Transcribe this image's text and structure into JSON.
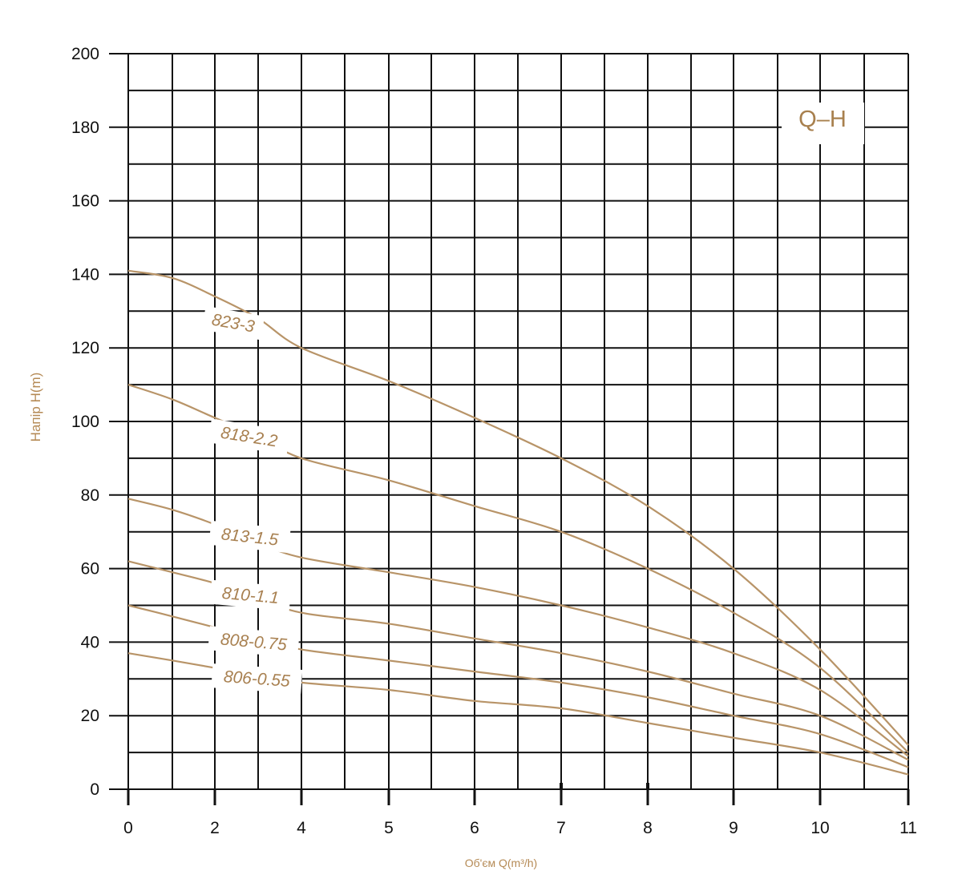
{
  "chart_data": {
    "type": "line",
    "title": "Q–H",
    "xlabel": "Об'єм Q(m³/h)",
    "ylabel": "Напір H(m)",
    "x_ticks": [
      0,
      2,
      4,
      5,
      6,
      7,
      8,
      9,
      10,
      11
    ],
    "y_ticks": [
      0,
      20,
      40,
      60,
      80,
      100,
      120,
      140,
      160,
      180,
      200
    ],
    "ylim": [
      0,
      200
    ],
    "grid": true,
    "line_color": "#b89468",
    "series": [
      {
        "name": "823-3",
        "x": [
          0,
          1,
          2,
          3,
          4,
          5,
          6,
          7,
          8,
          9,
          10,
          11
        ],
        "y": [
          141,
          139,
          134,
          128,
          120,
          111,
          101,
          90,
          77,
          60,
          38,
          12
        ]
      },
      {
        "name": "818-2.2",
        "x": [
          0,
          1,
          2,
          3,
          4,
          5,
          6,
          7,
          8,
          9,
          10,
          11
        ],
        "y": [
          110,
          106,
          101,
          96,
          90,
          84,
          77,
          70,
          60,
          48,
          33,
          10
        ]
      },
      {
        "name": "813-1.5",
        "x": [
          0,
          1,
          2,
          3,
          4,
          5,
          6,
          7,
          8,
          9,
          10,
          11
        ],
        "y": [
          79,
          76,
          72,
          67,
          63,
          59,
          55,
          50,
          44,
          37,
          27,
          9
        ]
      },
      {
        "name": "810-1.1",
        "x": [
          0,
          1,
          2,
          3,
          4,
          5,
          6,
          7,
          8,
          9,
          10,
          11
        ],
        "y": [
          62,
          59,
          56,
          52,
          48,
          45,
          41,
          37,
          32,
          26,
          20,
          8
        ]
      },
      {
        "name": "808-0.75",
        "x": [
          0,
          1,
          2,
          3,
          4,
          5,
          6,
          7,
          8,
          9,
          10,
          11
        ],
        "y": [
          50,
          47,
          44,
          41,
          38,
          35,
          32,
          29,
          25,
          20,
          15,
          6
        ]
      },
      {
        "name": "806-0.55",
        "x": [
          0,
          1,
          2,
          3,
          4,
          5,
          6,
          7,
          8,
          9,
          10,
          11
        ],
        "y": [
          37,
          35,
          33,
          31,
          29,
          27,
          24,
          22,
          18,
          14,
          10,
          4
        ]
      }
    ]
  }
}
